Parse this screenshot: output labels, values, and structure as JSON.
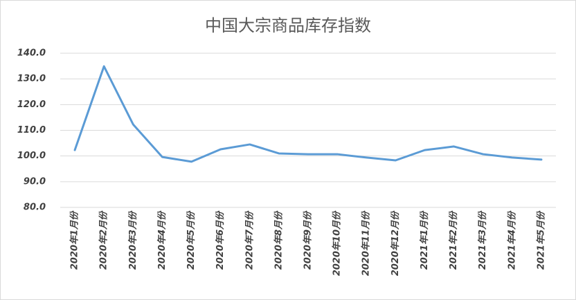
{
  "chart_data": {
    "type": "line",
    "title": "中国大宗商品库存指数",
    "categories": [
      "2020年1月份",
      "2020年2月份",
      "2020年3月份",
      "2020年4月份",
      "2020年5月份",
      "2020年6月份",
      "2020年7月份",
      "2020年8月份",
      "2020年9月份",
      "2020年10月份",
      "2020年11月份",
      "2020年12月份",
      "2021年1月份",
      "2021年2月份",
      "2021年3月份",
      "2021年4月份",
      "2021年5月份"
    ],
    "values": [
      102.3,
      134.9,
      112.3,
      99.6,
      97.8,
      102.6,
      104.5,
      101.0,
      100.7,
      100.7,
      99.4,
      98.3,
      102.3,
      103.7,
      100.7,
      99.4,
      98.6
    ],
    "color": "#5b9bd5",
    "ylim": [
      80,
      140
    ],
    "yticks": [
      {
        "value": 80,
        "label": "80.0"
      },
      {
        "value": 90,
        "label": "90.0"
      },
      {
        "value": 100,
        "label": "100.0"
      },
      {
        "value": 110,
        "label": "110.0"
      },
      {
        "value": 120,
        "label": "120.0"
      },
      {
        "value": 130,
        "label": "130.0"
      },
      {
        "value": 140,
        "label": "140.0"
      }
    ],
    "grid": true
  }
}
